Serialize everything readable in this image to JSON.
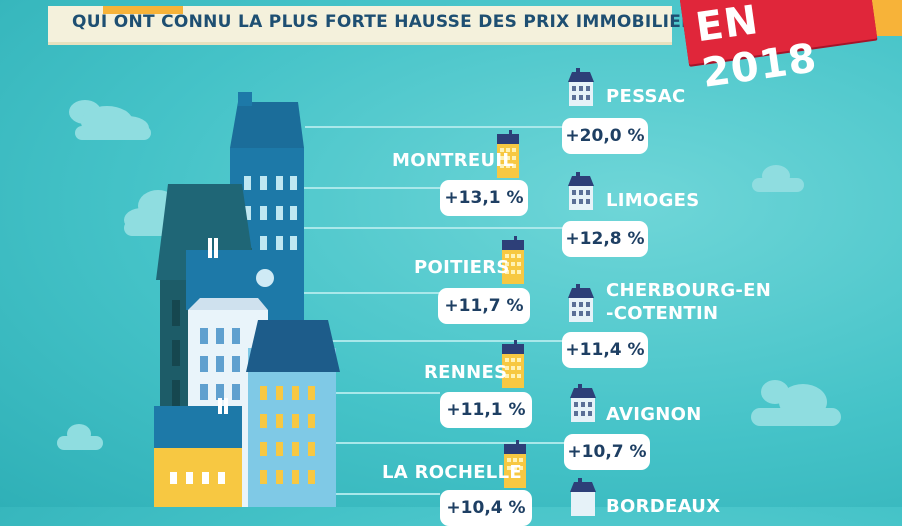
{
  "header": {
    "text": "QUI ONT CONNU LA PLUS FORTE HAUSSE DES PRIX IMMOBILIERS"
  },
  "ribbon": {
    "text": "EN 2018"
  },
  "right_items": [
    {
      "city": "PESSAC",
      "value": "+20,0 %"
    },
    {
      "city": "LIMOGES",
      "value": "+12,8 %"
    },
    {
      "city_line1": "CHERBOURG-EN",
      "city_line2": "-COTENTIN",
      "value": "+11,4 %"
    },
    {
      "city": "AVIGNON",
      "value": "+10,7 %"
    },
    {
      "city": "BORDEAUX",
      "value": ""
    }
  ],
  "left_items": [
    {
      "city": "MONTREUIL",
      "value": "+13,1 %"
    },
    {
      "city": "POITIERS",
      "value": "+11,7 %"
    },
    {
      "city": "RENNES",
      "value": "+11,1 %"
    },
    {
      "city": "LA ROCHELLE",
      "value": "+10,4 %"
    }
  ],
  "colors": {
    "background": "#45c3c8",
    "ribbon": "#e0263a",
    "header_text": "#1e4f72",
    "pill_text": "#1e3f63",
    "yellow": "#f7b339"
  }
}
